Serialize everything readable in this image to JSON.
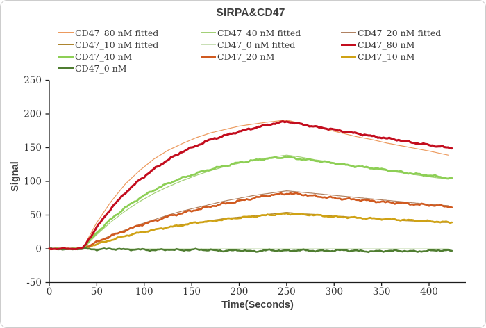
{
  "title": "SIRPA&CD47",
  "axes": {
    "x": {
      "label": "Time(Seconds)"
    },
    "y": {
      "label": "Signal"
    }
  },
  "legend": {
    "columns": 3,
    "items": [
      {
        "label": "CD47_80 nM fitted",
        "color": "#EC9A5E",
        "line": "thin"
      },
      {
        "label": "CD47_40 nM fitted",
        "color": "#A3D077",
        "line": "thin"
      },
      {
        "label": "CD47_20 nM fitted",
        "color": "#B08262",
        "line": "thin"
      },
      {
        "label": "CD47_10 nM fitted",
        "color": "#AD852F",
        "line": "thin"
      },
      {
        "label": "CD47_0 nM fitted",
        "color": "#C9DFB6",
        "line": "thin"
      },
      {
        "label": "CD47_80 nM",
        "color": "#C30D1E",
        "line": "thick"
      },
      {
        "label": "CD47_40 nM",
        "color": "#8DCF55",
        "line": "thick"
      },
      {
        "label": "CD47_20 nM",
        "color": "#D05A20",
        "line": "thick"
      },
      {
        "label": "CD47_10 nM",
        "color": "#CFA215",
        "line": "thick"
      },
      {
        "label": "CD47_0 nM",
        "color": "#4F7D31",
        "line": "thick"
      }
    ]
  },
  "chart_data": {
    "type": "line",
    "title": "SIRPA&CD47",
    "xlabel": "Time(Seconds)",
    "ylabel": "Signal",
    "xlim": [
      0,
      438
    ],
    "ylim": [
      -50,
      250
    ],
    "x_ticks": [
      0,
      50,
      100,
      150,
      200,
      250,
      300,
      350,
      400
    ],
    "y_ticks": [
      -50,
      0,
      50,
      100,
      150,
      200,
      250
    ],
    "grid": false,
    "legend_position": "top",
    "association_start_s": 35,
    "dissociation_start_s": 250,
    "series": [
      {
        "name": "CD47_0 nM fitted",
        "style": "fitted",
        "color": "#C9DFB6",
        "stroke_width": 1.2,
        "noise": 0,
        "points": [
          [
            0,
            0
          ],
          [
            420,
            0
          ]
        ]
      },
      {
        "name": "CD47_10 nM fitted",
        "style": "fitted",
        "color": "#AD852F",
        "stroke_width": 1.2,
        "noise": 0,
        "points": [
          [
            0,
            0
          ],
          [
            35,
            0
          ],
          [
            50,
            7
          ],
          [
            65,
            13
          ],
          [
            80,
            19
          ],
          [
            95,
            24
          ],
          [
            110,
            28
          ],
          [
            125,
            32
          ],
          [
            140,
            36
          ],
          [
            155,
            39
          ],
          [
            170,
            42
          ],
          [
            185,
            45
          ],
          [
            200,
            47
          ],
          [
            215,
            49
          ],
          [
            230,
            51
          ],
          [
            250,
            54
          ],
          [
            265,
            52
          ],
          [
            280,
            51
          ],
          [
            295,
            49
          ],
          [
            310,
            48
          ],
          [
            325,
            46
          ],
          [
            340,
            45
          ],
          [
            355,
            44
          ],
          [
            370,
            42
          ],
          [
            385,
            41
          ],
          [
            400,
            40
          ],
          [
            410,
            39
          ],
          [
            420,
            39
          ]
        ]
      },
      {
        "name": "CD47_20 nM fitted",
        "style": "fitted",
        "color": "#B08262",
        "stroke_width": 1.2,
        "noise": 0,
        "points": [
          [
            0,
            0
          ],
          [
            35,
            0
          ],
          [
            50,
            10
          ],
          [
            65,
            20
          ],
          [
            80,
            28
          ],
          [
            95,
            36
          ],
          [
            110,
            43
          ],
          [
            125,
            50
          ],
          [
            140,
            56
          ],
          [
            155,
            61
          ],
          [
            170,
            66
          ],
          [
            185,
            71
          ],
          [
            200,
            75
          ],
          [
            215,
            79
          ],
          [
            230,
            82
          ],
          [
            250,
            86
          ],
          [
            265,
            84
          ],
          [
            280,
            82
          ],
          [
            295,
            80
          ],
          [
            310,
            78
          ],
          [
            325,
            76
          ],
          [
            340,
            74
          ],
          [
            355,
            72
          ],
          [
            370,
            70
          ],
          [
            385,
            68
          ],
          [
            400,
            66
          ],
          [
            410,
            65
          ],
          [
            420,
            64
          ]
        ]
      },
      {
        "name": "CD47_40 nM fitted",
        "style": "fitted",
        "color": "#A3D077",
        "stroke_width": 1.2,
        "noise": 0,
        "points": [
          [
            0,
            0
          ],
          [
            35,
            0
          ],
          [
            50,
            21
          ],
          [
            65,
            40
          ],
          [
            80,
            56
          ],
          [
            95,
            70
          ],
          [
            110,
            82
          ],
          [
            125,
            92
          ],
          [
            140,
            101
          ],
          [
            155,
            109
          ],
          [
            170,
            116
          ],
          [
            185,
            122
          ],
          [
            200,
            127
          ],
          [
            215,
            131
          ],
          [
            230,
            135
          ],
          [
            250,
            139
          ],
          [
            265,
            136
          ],
          [
            280,
            132
          ],
          [
            295,
            129
          ],
          [
            310,
            125
          ],
          [
            325,
            122
          ],
          [
            340,
            119
          ],
          [
            355,
            116
          ],
          [
            370,
            113
          ],
          [
            385,
            110
          ],
          [
            400,
            107
          ],
          [
            410,
            105
          ],
          [
            420,
            104
          ]
        ]
      },
      {
        "name": "CD47_80 nM fitted",
        "style": "fitted",
        "color": "#EC9A5E",
        "stroke_width": 1.2,
        "noise": 0,
        "points": [
          [
            0,
            0
          ],
          [
            35,
            0
          ],
          [
            50,
            39
          ],
          [
            65,
            70
          ],
          [
            80,
            96
          ],
          [
            95,
            116
          ],
          [
            110,
            133
          ],
          [
            125,
            146
          ],
          [
            140,
            156
          ],
          [
            155,
            165
          ],
          [
            170,
            172
          ],
          [
            185,
            177
          ],
          [
            200,
            182
          ],
          [
            215,
            185
          ],
          [
            230,
            188
          ],
          [
            250,
            191
          ],
          [
            265,
            186
          ],
          [
            280,
            181
          ],
          [
            295,
            176
          ],
          [
            310,
            171
          ],
          [
            325,
            166
          ],
          [
            340,
            162
          ],
          [
            355,
            157
          ],
          [
            370,
            153
          ],
          [
            385,
            149
          ],
          [
            400,
            145
          ],
          [
            410,
            142
          ],
          [
            420,
            139
          ]
        ]
      },
      {
        "name": "CD47_10 nM",
        "style": "measured",
        "color": "#CFA215",
        "stroke_width": 2.7,
        "noise": 1.2,
        "points": [
          [
            0,
            0
          ],
          [
            10,
            0
          ],
          [
            20,
            0
          ],
          [
            30,
            0
          ],
          [
            35,
            0
          ],
          [
            50,
            7
          ],
          [
            65,
            13
          ],
          [
            80,
            19
          ],
          [
            95,
            24
          ],
          [
            110,
            28
          ],
          [
            125,
            32
          ],
          [
            140,
            35
          ],
          [
            155,
            39
          ],
          [
            170,
            41
          ],
          [
            185,
            44
          ],
          [
            200,
            46
          ],
          [
            215,
            48
          ],
          [
            230,
            50
          ],
          [
            250,
            52
          ],
          [
            265,
            51
          ],
          [
            280,
            50
          ],
          [
            295,
            48
          ],
          [
            310,
            47
          ],
          [
            325,
            46
          ],
          [
            340,
            45
          ],
          [
            355,
            44
          ],
          [
            370,
            43
          ],
          [
            385,
            42
          ],
          [
            400,
            41
          ],
          [
            410,
            40
          ],
          [
            425,
            39
          ]
        ]
      },
      {
        "name": "CD47_20 nM",
        "style": "measured",
        "color": "#D05A20",
        "stroke_width": 2.7,
        "noise": 1.6,
        "points": [
          [
            0,
            0
          ],
          [
            10,
            0
          ],
          [
            20,
            0
          ],
          [
            30,
            0
          ],
          [
            35,
            0
          ],
          [
            50,
            10
          ],
          [
            65,
            19
          ],
          [
            80,
            27
          ],
          [
            95,
            35
          ],
          [
            110,
            41
          ],
          [
            125,
            48
          ],
          [
            140,
            53
          ],
          [
            155,
            58
          ],
          [
            170,
            63
          ],
          [
            185,
            67
          ],
          [
            200,
            71
          ],
          [
            215,
            75
          ],
          [
            230,
            79
          ],
          [
            250,
            82
          ],
          [
            265,
            81
          ],
          [
            280,
            78
          ],
          [
            295,
            76
          ],
          [
            310,
            74
          ],
          [
            325,
            73
          ],
          [
            340,
            71
          ],
          [
            355,
            69
          ],
          [
            370,
            68
          ],
          [
            385,
            66
          ],
          [
            400,
            65
          ],
          [
            410,
            64
          ],
          [
            425,
            62
          ]
        ]
      },
      {
        "name": "CD47_40 nM",
        "style": "measured",
        "color": "#8DCF55",
        "stroke_width": 2.8,
        "noise": 1.4,
        "points": [
          [
            0,
            0
          ],
          [
            10,
            0
          ],
          [
            20,
            0
          ],
          [
            30,
            0
          ],
          [
            35,
            0
          ],
          [
            50,
            24
          ],
          [
            65,
            44
          ],
          [
            80,
            61
          ],
          [
            95,
            75
          ],
          [
            110,
            87
          ],
          [
            125,
            97
          ],
          [
            140,
            105
          ],
          [
            155,
            112
          ],
          [
            170,
            118
          ],
          [
            185,
            123
          ],
          [
            200,
            128
          ],
          [
            215,
            131
          ],
          [
            230,
            134
          ],
          [
            250,
            136
          ],
          [
            265,
            133
          ],
          [
            280,
            131
          ],
          [
            295,
            128
          ],
          [
            310,
            125
          ],
          [
            325,
            122
          ],
          [
            340,
            120
          ],
          [
            355,
            117
          ],
          [
            370,
            114
          ],
          [
            385,
            111
          ],
          [
            400,
            109
          ],
          [
            410,
            107
          ],
          [
            425,
            104
          ]
        ]
      },
      {
        "name": "CD47_0 nM",
        "style": "measured",
        "color": "#4F7D31",
        "stroke_width": 2.6,
        "noise": 1.3,
        "points": [
          [
            0,
            0
          ],
          [
            20,
            -1
          ],
          [
            35,
            0
          ],
          [
            50,
            -1
          ],
          [
            65,
            0
          ],
          [
            80,
            -1
          ],
          [
            95,
            -1
          ],
          [
            110,
            -2
          ],
          [
            125,
            -1
          ],
          [
            140,
            -2
          ],
          [
            155,
            -1
          ],
          [
            170,
            -2
          ],
          [
            185,
            -3
          ],
          [
            200,
            -2
          ],
          [
            215,
            -4
          ],
          [
            230,
            -2
          ],
          [
            250,
            -3
          ],
          [
            265,
            -2
          ],
          [
            280,
            -3
          ],
          [
            295,
            -3
          ],
          [
            310,
            -2
          ],
          [
            325,
            -3
          ],
          [
            340,
            -4
          ],
          [
            355,
            -3
          ],
          [
            370,
            -3
          ],
          [
            385,
            -4
          ],
          [
            400,
            -3
          ],
          [
            410,
            -2
          ],
          [
            425,
            -3
          ]
        ]
      },
      {
        "name": "CD47_80 nM",
        "style": "measured",
        "color": "#C30D1E",
        "stroke_width": 3.1,
        "noise": 1.3,
        "points": [
          [
            0,
            0
          ],
          [
            10,
            0
          ],
          [
            20,
            0
          ],
          [
            30,
            0
          ],
          [
            35,
            0
          ],
          [
            50,
            32
          ],
          [
            65,
            60
          ],
          [
            80,
            83
          ],
          [
            95,
            102
          ],
          [
            110,
            118
          ],
          [
            125,
            132
          ],
          [
            140,
            144
          ],
          [
            155,
            153
          ],
          [
            170,
            162
          ],
          [
            185,
            168
          ],
          [
            200,
            174
          ],
          [
            215,
            179
          ],
          [
            230,
            184
          ],
          [
            250,
            189
          ],
          [
            265,
            185
          ],
          [
            280,
            181
          ],
          [
            295,
            178
          ],
          [
            310,
            174
          ],
          [
            325,
            171
          ],
          [
            340,
            167
          ],
          [
            355,
            164
          ],
          [
            370,
            161
          ],
          [
            385,
            157
          ],
          [
            400,
            154
          ],
          [
            410,
            152
          ],
          [
            425,
            149
          ]
        ]
      }
    ]
  }
}
